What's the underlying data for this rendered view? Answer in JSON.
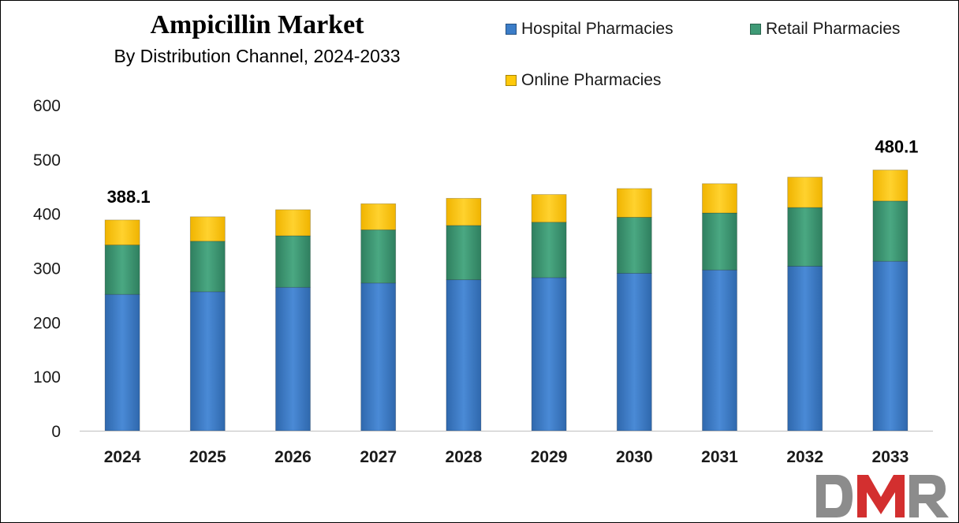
{
  "chart_data": {
    "type": "bar",
    "stacked": true,
    "title": "Ampicillin Market",
    "subtitle": "By Distribution Channel, 2024-2033",
    "categories": [
      "2024",
      "2025",
      "2026",
      "2027",
      "2028",
      "2029",
      "2030",
      "2031",
      "2032",
      "2033"
    ],
    "series": [
      {
        "name": "Hospital Pharmacies",
        "color": "#3b7dc8",
        "values": [
          251,
          256,
          264,
          272,
          278,
          282,
          290,
          296,
          303,
          312
        ]
      },
      {
        "name": "Retail Pharmacies",
        "color": "#3f9a76",
        "values": [
          91,
          93,
          95,
          98,
          100,
          102,
          103,
          105,
          108,
          111
        ]
      },
      {
        "name": "Online Pharmacies",
        "color": "#ffc90a",
        "values": [
          46.1,
          45,
          48,
          48,
          50,
          51,
          53,
          54,
          56,
          57.1
        ]
      }
    ],
    "totals": [
      388.1,
      394,
      407,
      418,
      428,
      435,
      446,
      455,
      467,
      480.1
    ],
    "data_labels": [
      {
        "category": "2024",
        "text": "388.1"
      },
      {
        "category": "2033",
        "text": "480.1"
      }
    ],
    "y_ticks": [
      "0",
      "100",
      "200",
      "300",
      "400",
      "500",
      "600"
    ],
    "ylim": [
      0,
      600
    ],
    "grid": false,
    "legend_position": "top-right"
  },
  "legend": [
    {
      "label": "Hospital Pharmacies",
      "color": "#3b7dc8"
    },
    {
      "label": "Retail Pharmacies",
      "color": "#3f9a76"
    },
    {
      "label": "Online Pharmacies",
      "color": "#ffc90a"
    }
  ],
  "logo": {
    "text": "DMR",
    "colors": [
      "#8a8a8a",
      "#d32f2f"
    ]
  }
}
